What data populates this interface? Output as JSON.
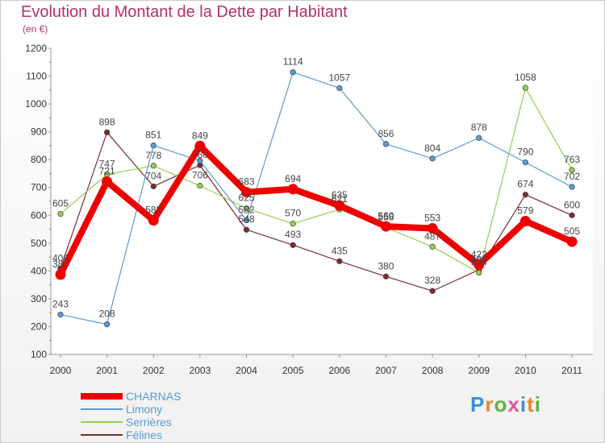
{
  "title": "Evolution du Montant de la Dette par Habitant",
  "subtitle": "(en €)",
  "logo": {
    "text": "Proxiti",
    "colors": [
      "#3b8fd8",
      "#e8872a",
      "#5bb53e",
      "#e05a9a",
      "#3b8fd8",
      "#e8872a",
      "#5bb53e"
    ]
  },
  "chart_data": {
    "type": "line",
    "x": [
      "2000",
      "2001",
      "2002",
      "2003",
      "2004",
      "2005",
      "2006",
      "2007",
      "2008",
      "2009",
      "2010",
      "2011"
    ],
    "ylim": [
      100,
      1200
    ],
    "yticks": [
      "100",
      "200",
      "300",
      "400",
      "500",
      "600",
      "700",
      "800",
      "900",
      "1000",
      "1100",
      "1200"
    ],
    "grid": false,
    "legend_position": "bottom-left",
    "series": [
      {
        "name": "Félines",
        "color": "#7b2d2d",
        "values": [
          409,
          898,
          704,
          780,
          548,
          493,
          435,
          380,
          328,
          404,
          674,
          600
        ],
        "labels": [
          "409",
          "898",
          "704",
          "780",
          "548",
          "493",
          "435",
          "380",
          "328",
          "404",
          "674",
          "600"
        ]
      },
      {
        "name": "Serrières",
        "color": "#8fd14f",
        "values": [
          605,
          747,
          778,
          706,
          625,
          570,
          621,
          556,
          487,
          394,
          1058,
          763
        ],
        "labels": [
          "605",
          "747",
          "778",
          "706",
          "625",
          "570",
          "621",
          "556",
          "487",
          "394",
          "",
          "763"
        ]
      },
      {
        "name": "Limony",
        "color": "#5b9bd5",
        "values": [
          243,
          208,
          851,
          796,
          582,
          1114,
          1057,
          856,
          804,
          878,
          790,
          702
        ],
        "labels": [
          "243",
          "208",
          "851",
          "",
          "582",
          "1114",
          "1057",
          "856",
          "804",
          "878",
          "790",
          "702"
        ]
      },
      {
        "name": "CHARNAS",
        "color": "#ee0000",
        "values": [
          387,
          721,
          582,
          849,
          683,
          694,
          635,
          560,
          553,
          422,
          579,
          505
        ],
        "labels": [
          "387",
          "721",
          "582",
          "849",
          "683",
          "694",
          "635",
          "560",
          "553",
          "422",
          "579",
          "505"
        ]
      }
    ],
    "extra_labels": [
      {
        "series": "Serrières",
        "x": "2010",
        "value": 1058,
        "text": "1058"
      }
    ],
    "legend": [
      "CHARNAS",
      "Limony",
      "Serrières",
      "Félines"
    ]
  }
}
